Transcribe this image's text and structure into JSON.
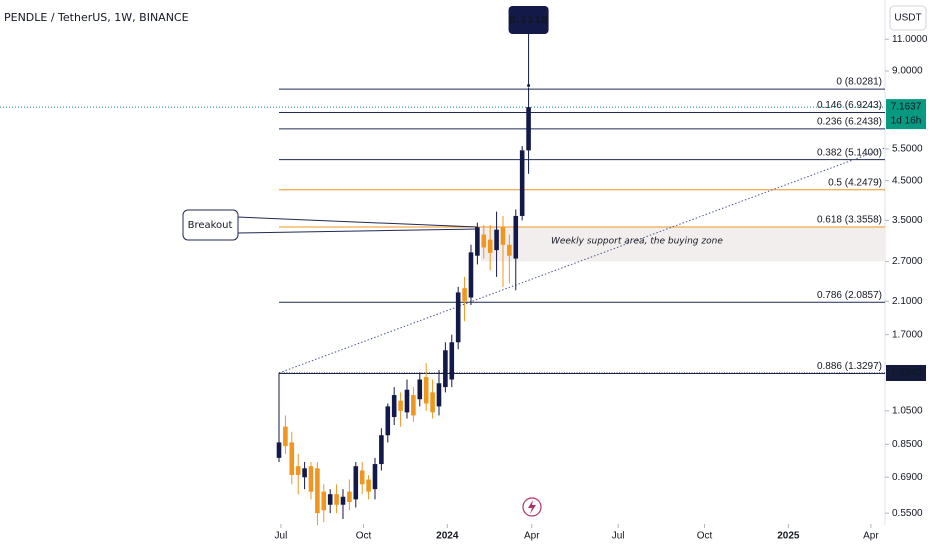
{
  "chart_data": {
    "type": "candlestick",
    "title": "PENDLE / TetherUS, 1W, BINANCE",
    "currency": "USDT",
    "log_y": true,
    "up_color": "#131a4a",
    "down_color": "#f0961f",
    "categories": [
      null,
      null,
      null,
      null,
      null,
      null,
      null,
      null,
      null,
      null,
      null,
      null,
      null,
      null,
      null,
      null,
      null,
      null,
      null,
      null,
      null,
      null,
      null,
      null,
      null,
      null,
      null,
      null,
      null,
      null,
      null,
      null,
      null,
      null,
      null,
      null,
      null,
      null,
      null,
      null
    ],
    "open": [
      0.78,
      0.95,
      0.86,
      0.74,
      0.69,
      0.74,
      0.73,
      0.63,
      0.58,
      0.62,
      0.58,
      0.63,
      0.6,
      0.72,
      0.68,
      0.64,
      0.75,
      0.9,
      1.01,
      1.12,
      1.04,
      1.16,
      1.13,
      1.3,
      1.18,
      1.08,
      1.22,
      1.28,
      1.62,
      2.28,
      2.15,
      2.8,
      3.2,
      3.1,
      2.9,
      3.35,
      3.0,
      2.75,
      3.6,
      5.45
    ],
    "high": [
      1.334,
      1.02,
      0.92,
      0.8,
      0.76,
      0.76,
      0.76,
      0.66,
      0.64,
      0.66,
      0.64,
      0.68,
      0.76,
      0.76,
      0.7,
      0.78,
      0.94,
      1.1,
      1.22,
      1.18,
      1.28,
      1.22,
      1.34,
      1.42,
      1.28,
      1.36,
      1.62,
      1.7,
      2.3,
      2.45,
      3.0,
      3.45,
      3.4,
      3.4,
      3.7,
      3.6,
      3.2,
      3.75,
      5.6,
      8.1118
    ],
    "low": [
      0.76,
      0.8,
      0.66,
      0.62,
      0.64,
      0.6,
      0.51,
      0.52,
      0.55,
      0.55,
      0.53,
      0.56,
      0.57,
      0.62,
      0.6,
      0.6,
      0.72,
      0.86,
      0.96,
      0.95,
      1.0,
      0.98,
      1.08,
      1.05,
      1.0,
      1.02,
      1.18,
      1.22,
      1.55,
      1.85,
      2.05,
      2.65,
      2.75,
      2.55,
      2.45,
      2.3,
      2.35,
      2.25,
      3.5,
      4.7
    ],
    "close": [
      0.86,
      0.84,
      0.7,
      0.7,
      0.73,
      0.63,
      0.55,
      0.56,
      0.62,
      0.58,
      0.61,
      0.59,
      0.74,
      0.66,
      0.63,
      0.75,
      0.9,
      1.08,
      1.16,
      1.05,
      1.2,
      1.02,
      1.28,
      1.1,
      1.04,
      1.25,
      1.54,
      1.62,
      2.22,
      2.1,
      2.86,
      3.35,
      2.95,
      2.85,
      3.3,
      3.0,
      2.8,
      3.6,
      5.45,
      7.1637
    ],
    "xlim": [
      -43.6,
      94.7
    ],
    "xticks": [
      {
        "value": 0.3,
        "label": "Jul"
      },
      {
        "value": 13.2,
        "label": "Oct"
      },
      {
        "value": 26.3,
        "label": "2024"
      },
      {
        "value": 39.5,
        "label": "Apr"
      },
      {
        "value": 53,
        "label": "Jul"
      },
      {
        "value": 66.5,
        "label": "Oct"
      },
      {
        "value": 79.6,
        "label": "2025"
      },
      {
        "value": 92.5,
        "label": "Apr"
      }
    ],
    "ylim": [
      0.52,
      14.1
    ],
    "yticks": [
      {
        "value": 11,
        "label": "11.0000"
      },
      {
        "value": 9,
        "label": "9.0000"
      },
      {
        "value": 5.5,
        "label": "5.5000"
      },
      {
        "value": 4.5,
        "label": "4.5000"
      },
      {
        "value": 3.5,
        "label": "3.5000"
      },
      {
        "value": 2.7,
        "label": "2.7000"
      },
      {
        "value": 2.1,
        "label": "2.1000"
      },
      {
        "value": 1.7,
        "label": "1.7000"
      },
      {
        "value": 1.05,
        "label": "1.0500"
      },
      {
        "value": 0.85,
        "label": "0.8500"
      },
      {
        "value": 0.69,
        "label": "0.6900"
      },
      {
        "value": 0.55,
        "label": "0.5500"
      }
    ],
    "fib_levels": [
      {
        "value": 8.0281,
        "label": "0 (8.0281)",
        "color": "#1f2a55"
      },
      {
        "value": 6.9243,
        "label": "0.146 (6.9243)",
        "color": "#1f2a55"
      },
      {
        "value": 6.2438,
        "label": "0.236 (6.2438)",
        "color": "#1f2a55"
      },
      {
        "value": 5.14,
        "label": "0.382 (5.1400)",
        "color": "#1f2a55"
      },
      {
        "value": 4.2479,
        "label": "0.5 (4.2479)",
        "color": "#f0961f"
      },
      {
        "value": 3.3558,
        "label": "0.618 (3.3558)",
        "color": "#f0961f"
      },
      {
        "value": 2.0857,
        "label": "0.786 (2.0857)",
        "color": "#1f2a55"
      },
      {
        "value": 1.3297,
        "label": "0.886 (1.3297)",
        "color": "#1f2a55"
      }
    ],
    "support_zone": {
      "top": 3.3558,
      "bottom": 2.7,
      "label": "Weekly support area, the buying zone"
    },
    "price_line": {
      "value": 1.334,
      "label": "1.3340"
    },
    "current_price": {
      "value": 7.1637,
      "label": "7.1637",
      "countdown": "1d 16h"
    },
    "high_callout": {
      "value": 8.1118,
      "label": "8.1118"
    },
    "annotations": [
      "Breakout"
    ]
  }
}
